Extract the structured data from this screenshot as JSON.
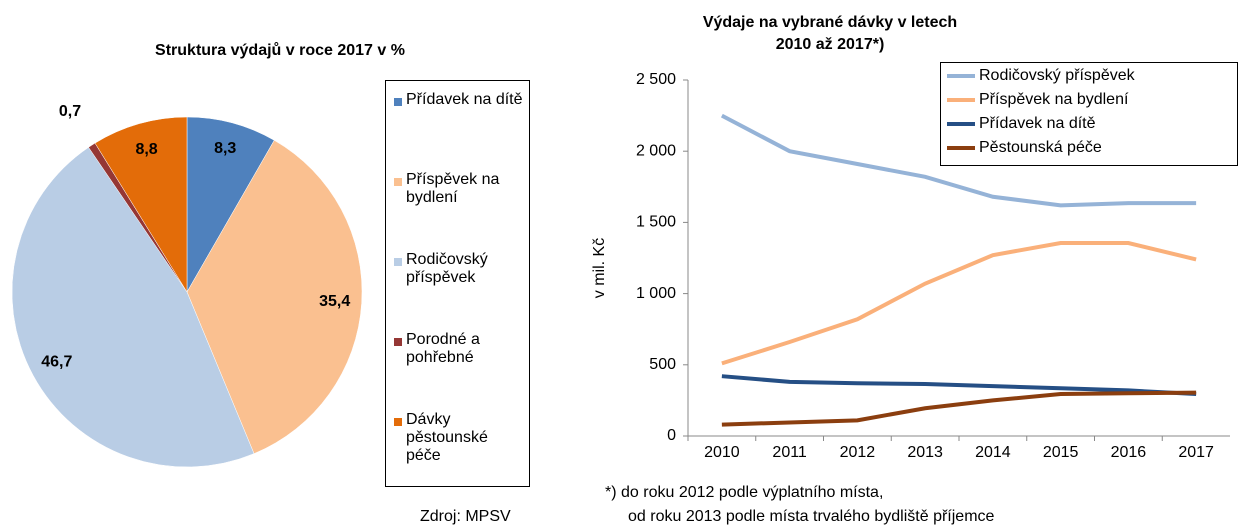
{
  "chart_data": [
    {
      "type": "pie",
      "title": "Struktura výdajů v roce 2017 v %",
      "categories": [
        "Přídavek na dítě",
        "Příspěvek na bydlení",
        "Rodičovský příspěvek",
        "Porodné a pohřebné",
        "Dávky pěstounské péče"
      ],
      "values": [
        8.3,
        35.4,
        46.7,
        0.7,
        8.8
      ],
      "value_labels": [
        "8,3",
        "35,4",
        "46,7",
        "0,7",
        "8,8"
      ],
      "colors": [
        "#4f81bd",
        "#fac090",
        "#b9cde5",
        "#953735",
        "#e36c09"
      ],
      "source": "Zdroj: MPSV"
    },
    {
      "type": "line",
      "title": "Výdaje na vybrané dávky v letech 2010 až 2017*)",
      "ylabel": "v mil. Kč",
      "categories": [
        "2010",
        "2011",
        "2012",
        "2013",
        "2014",
        "2015",
        "2016",
        "2017"
      ],
      "series": [
        {
          "name": "Rodičovský příspěvek",
          "color": "#95b3d7",
          "values": [
            2250,
            2000,
            1910,
            1820,
            1680,
            1620,
            1635,
            1635
          ]
        },
        {
          "name": "Příspěvek na bydlení",
          "color": "#fab07a",
          "values": [
            510,
            660,
            820,
            1070,
            1270,
            1355,
            1355,
            1240
          ]
        },
        {
          "name": "Přídavek na dítě",
          "color": "#254f85",
          "values": [
            420,
            380,
            370,
            365,
            350,
            335,
            320,
            295
          ]
        },
        {
          "name": "Pěstounská péče",
          "color": "#8b3e0f",
          "values": [
            80,
            95,
            110,
            195,
            250,
            295,
            300,
            305
          ]
        }
      ],
      "ylim": [
        0,
        2500
      ],
      "yticks": [
        0,
        500,
        {
          "value": 1000,
          "label": "1 000"
        },
        {
          "value": 1500,
          "label": "1 500"
        },
        {
          "value": 2000,
          "label": "2 000"
        },
        {
          "value": 2500,
          "label": "2 500"
        }
      ],
      "note": [
        "*) do roku 2012 podle výplatního místa,",
        "od roku 2013 podle místa trvalého bydliště příjemce"
      ]
    }
  ]
}
